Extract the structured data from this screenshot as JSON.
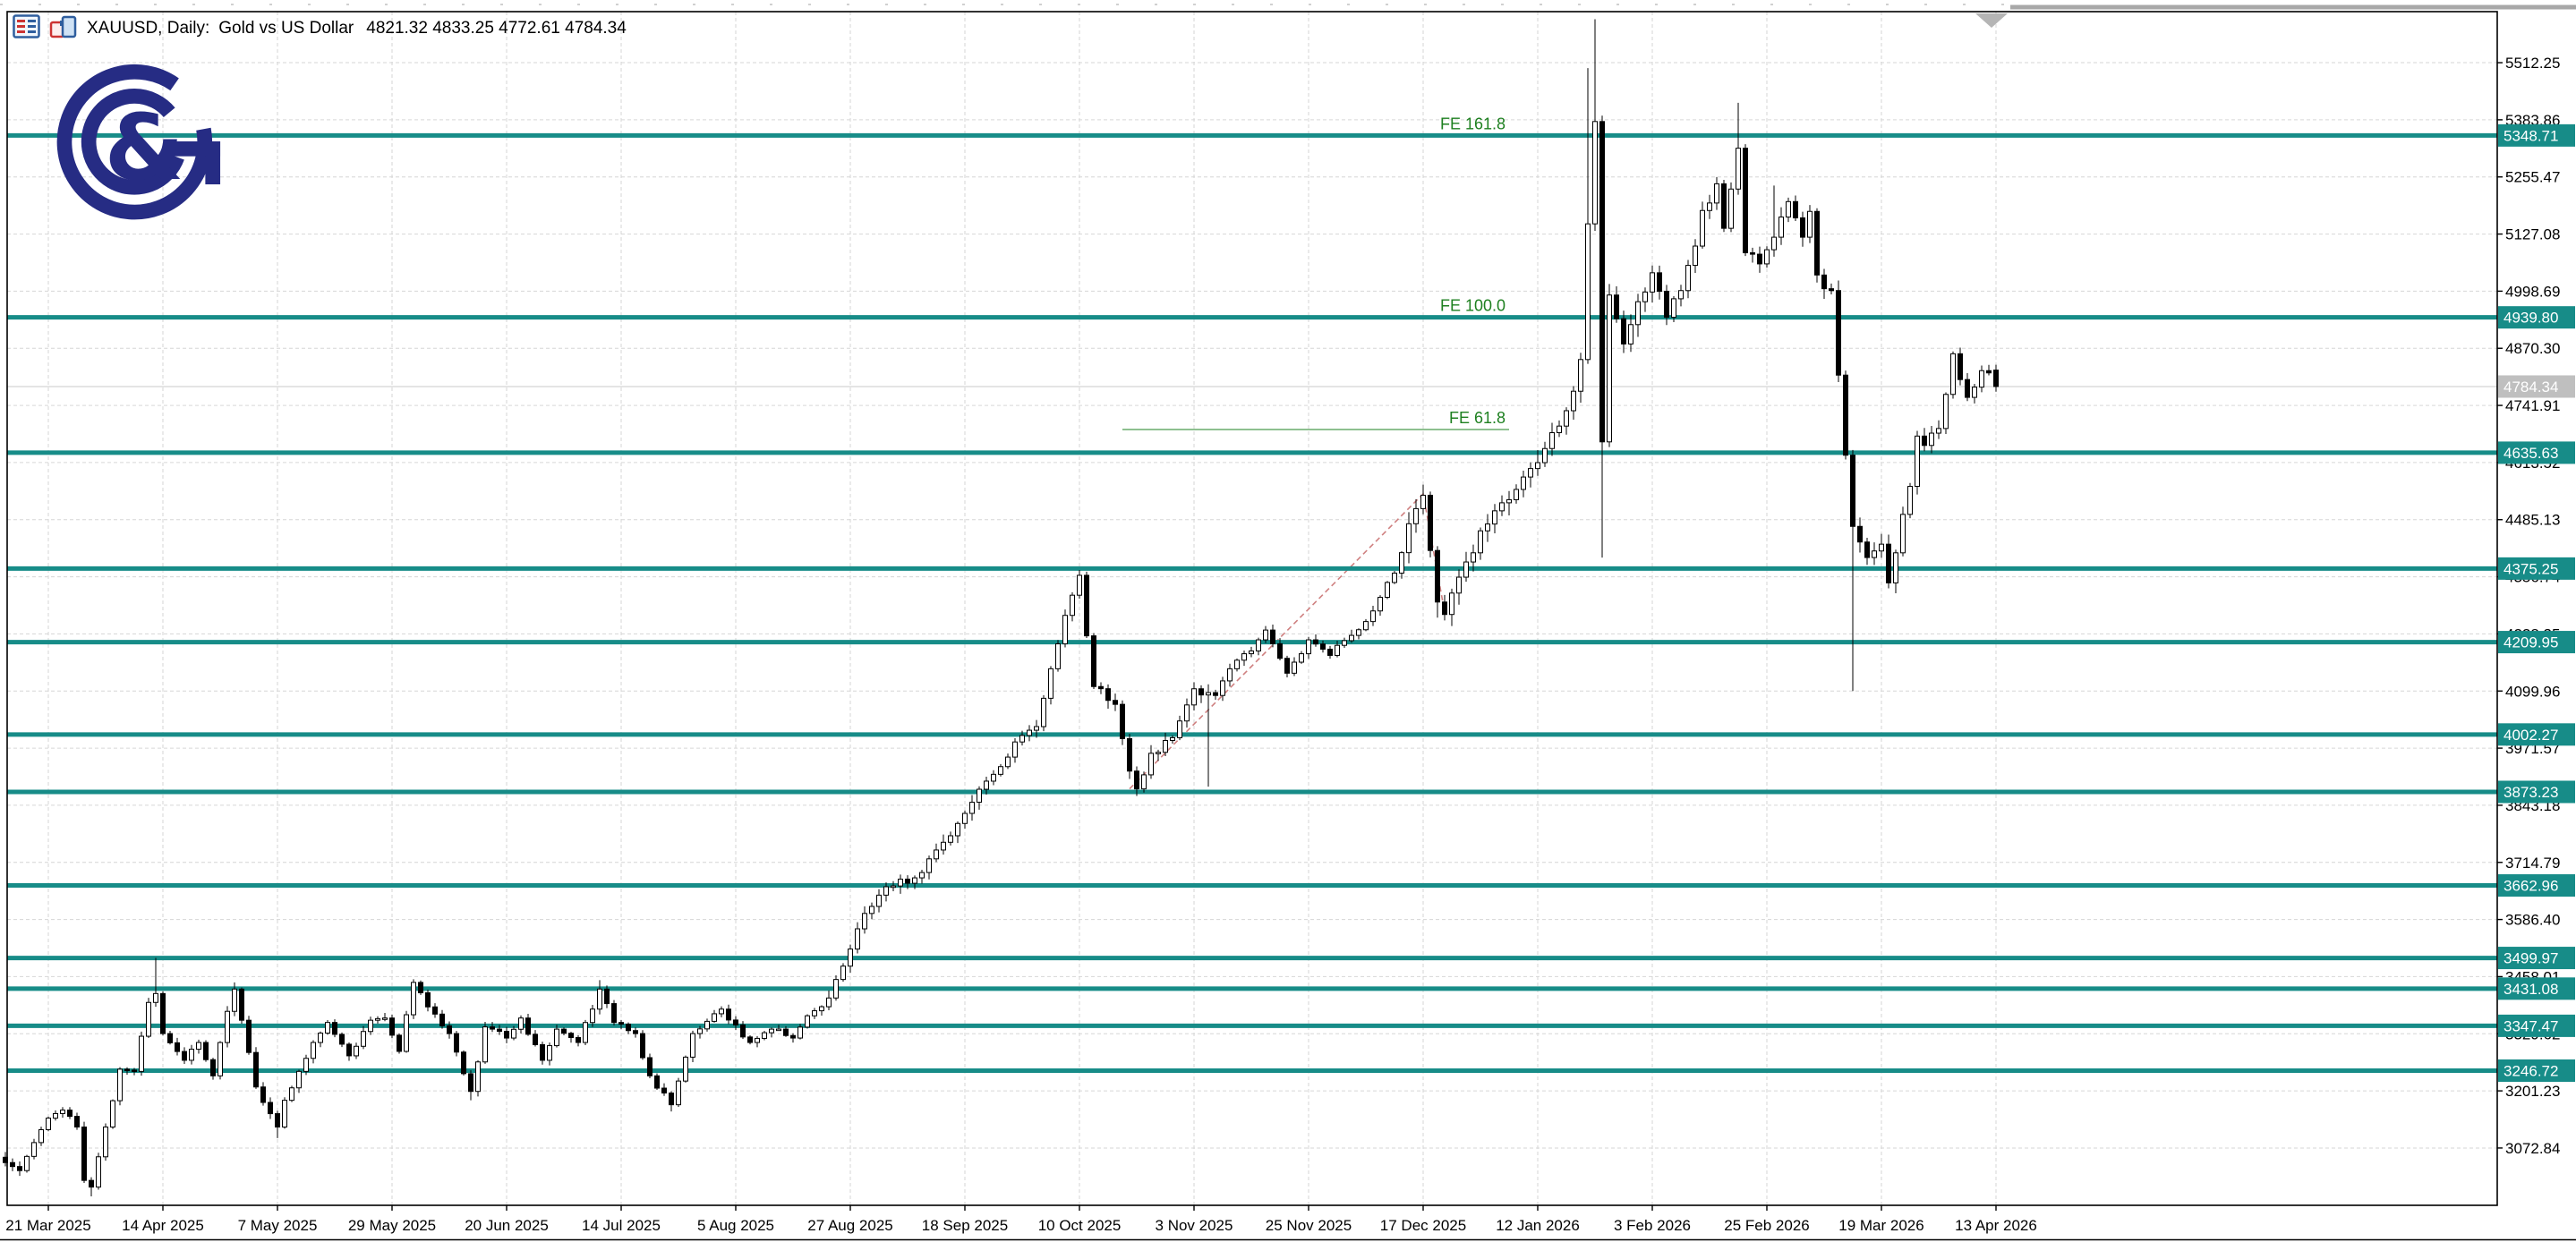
{
  "window": {
    "title_symbol": "XAUUSD, Daily:",
    "title_desc": "Gold vs US Dollar",
    "title_ohlc": "4821.32 4833.25 4772.61 4784.34",
    "icons": [
      "market-watch-icon",
      "chart-windows-icon"
    ],
    "logo": "gc-broker-logo"
  },
  "colors": {
    "level_teal": "#178c88",
    "level_label_text": "#ffffff",
    "current_price_bg": "#bfbfbf",
    "current_price_line": "#c9c9c9",
    "fib_green": "#1e8020",
    "fib_trend_red": "#cf8080",
    "grid": "#d6d6d6",
    "bull_body": "#ffffff",
    "bear_body": "#000000",
    "candle_outline": "#000000",
    "axis_text": "#000000",
    "border": "#000000",
    "scroll_thumb": "#a8a8a8",
    "shift_triangle": "#b5b5b5",
    "logo_navy": "#262c84",
    "icon_blue": "#2f5e9e",
    "icon_red": "#cc3333",
    "icon_fill": "#cfe2f5"
  },
  "chart_data": {
    "type": "candlestick",
    "symbol": "XAUUSD",
    "timeframe": "Daily",
    "title": "Gold vs US Dollar",
    "last_ohlc": {
      "open": 4821.32,
      "high": 4833.25,
      "low": 4772.61,
      "close": 4784.34
    },
    "current_price": 4784.34,
    "bars": 279,
    "ylim": [
      2944,
      5627
    ],
    "grid": true,
    "price_ticks": [
      5512.25,
      5383.86,
      5255.47,
      5127.08,
      4998.69,
      4870.3,
      4741.91,
      4613.52,
      4485.13,
      4356.74,
      4228.35,
      4099.96,
      3971.57,
      3843.18,
      3714.79,
      3586.4,
      3458.01,
      3329.62,
      3201.23,
      3072.84
    ],
    "sr_levels": [
      5348.71,
      4939.8,
      4635.63,
      4375.25,
      4209.95,
      4002.27,
      3873.23,
      3662.96,
      3499.97,
      3431.08,
      3347.47,
      3246.72
    ],
    "close_anchors": [
      [
        0,
        3040
      ],
      [
        2,
        3022
      ],
      [
        4,
        3085
      ],
      [
        6,
        3140
      ],
      [
        8,
        3158
      ],
      [
        10,
        3120
      ],
      [
        11,
        3000
      ],
      [
        12,
        2985
      ],
      [
        14,
        3120
      ],
      [
        16,
        3250
      ],
      [
        18,
        3245
      ],
      [
        20,
        3400
      ],
      [
        21,
        3420
      ],
      [
        22,
        3330
      ],
      [
        25,
        3270
      ],
      [
        27,
        3310
      ],
      [
        29,
        3235
      ],
      [
        31,
        3380
      ],
      [
        32,
        3430
      ],
      [
        33,
        3360
      ],
      [
        35,
        3210
      ],
      [
        37,
        3150
      ],
      [
        38,
        3120
      ],
      [
        39,
        3180
      ],
      [
        41,
        3245
      ],
      [
        43,
        3310
      ],
      [
        45,
        3355
      ],
      [
        48,
        3280
      ],
      [
        51,
        3360
      ],
      [
        53,
        3365
      ],
      [
        55,
        3290
      ],
      [
        57,
        3445
      ],
      [
        59,
        3390
      ],
      [
        62,
        3330
      ],
      [
        65,
        3200
      ],
      [
        67,
        3345
      ],
      [
        70,
        3320
      ],
      [
        72,
        3365
      ],
      [
        75,
        3270
      ],
      [
        77,
        3340
      ],
      [
        80,
        3310
      ],
      [
        83,
        3430
      ],
      [
        85,
        3355
      ],
      [
        88,
        3330
      ],
      [
        90,
        3235
      ],
      [
        93,
        3170
      ],
      [
        96,
        3330
      ],
      [
        100,
        3385
      ],
      [
        104,
        3310
      ],
      [
        107,
        3340
      ],
      [
        110,
        3320
      ],
      [
        112,
        3370
      ],
      [
        115,
        3410
      ],
      [
        118,
        3520
      ],
      [
        120,
        3600
      ],
      [
        123,
        3660
      ],
      [
        127,
        3680
      ],
      [
        131,
        3760
      ],
      [
        135,
        3850
      ],
      [
        139,
        3930
      ],
      [
        142,
        4000
      ],
      [
        144,
        4020
      ],
      [
        146,
        4150
      ],
      [
        148,
        4270
      ],
      [
        150,
        4360
      ],
      [
        152,
        4110
      ],
      [
        155,
        4070
      ],
      [
        157,
        3920
      ],
      [
        158,
        3880
      ],
      [
        160,
        3960
      ],
      [
        163,
        3995
      ],
      [
        166,
        4105
      ],
      [
        169,
        4090
      ],
      [
        171,
        4150
      ],
      [
        174,
        4190
      ],
      [
        176,
        4237
      ],
      [
        179,
        4140
      ],
      [
        182,
        4215
      ],
      [
        185,
        4180
      ],
      [
        188,
        4225
      ],
      [
        191,
        4280
      ],
      [
        194,
        4365
      ],
      [
        197,
        4510
      ],
      [
        198,
        4540
      ],
      [
        200,
        4300
      ],
      [
        201,
        4272
      ],
      [
        204,
        4390
      ],
      [
        206,
        4460
      ],
      [
        208,
        4505
      ],
      [
        210,
        4530
      ],
      [
        213,
        4600
      ],
      [
        215,
        4645
      ],
      [
        218,
        4730
      ],
      [
        220,
        4845
      ],
      [
        221,
        5150
      ],
      [
        222,
        5380
      ],
      [
        223,
        4660
      ],
      [
        224,
        4990
      ],
      [
        226,
        4880
      ],
      [
        228,
        4975
      ],
      [
        230,
        5040
      ],
      [
        232,
        4940
      ],
      [
        234,
        5000
      ],
      [
        236,
        5100
      ],
      [
        237,
        5180
      ],
      [
        239,
        5240
      ],
      [
        240,
        5140
      ],
      [
        242,
        5320
      ],
      [
        243,
        5085
      ],
      [
        245,
        5060
      ],
      [
        247,
        5120
      ],
      [
        249,
        5200
      ],
      [
        251,
        5120
      ],
      [
        252,
        5178
      ],
      [
        253,
        5035
      ],
      [
        255,
        5000
      ],
      [
        256,
        4810
      ],
      [
        257,
        4630
      ],
      [
        258,
        4470
      ],
      [
        260,
        4400
      ],
      [
        262,
        4430
      ],
      [
        263,
        4343
      ],
      [
        265,
        4497
      ],
      [
        266,
        4560
      ],
      [
        267,
        4673
      ],
      [
        268,
        4652
      ],
      [
        270,
        4690
      ],
      [
        272,
        4858
      ],
      [
        273,
        4800
      ],
      [
        274,
        4760
      ],
      [
        276,
        4820
      ],
      [
        277,
        4815
      ],
      [
        278,
        4784.34
      ]
    ],
    "wick_highs": [
      [
        21,
        3500
      ],
      [
        32,
        3445
      ],
      [
        57,
        3452
      ],
      [
        83,
        3450
      ],
      [
        150,
        4372
      ],
      [
        198,
        4549
      ],
      [
        221,
        5500
      ],
      [
        222,
        5610
      ],
      [
        242,
        5422
      ],
      [
        247,
        5236
      ]
    ],
    "wick_lows": [
      [
        12,
        2964
      ],
      [
        38,
        3095
      ],
      [
        65,
        3180
      ],
      [
        93,
        3155
      ],
      [
        158,
        3878
      ],
      [
        168,
        3885
      ],
      [
        200,
        4265
      ],
      [
        223,
        4400
      ],
      [
        258,
        4100
      ],
      [
        263,
        4331
      ]
    ],
    "volatility": [
      [
        0,
        114,
        1.0
      ],
      [
        115,
        150,
        1.5
      ],
      [
        151,
        170,
        1.6
      ],
      [
        171,
        195,
        1.1
      ],
      [
        196,
        230,
        2.4
      ],
      [
        231,
        255,
        1.9
      ],
      [
        256,
        270,
        2.0
      ],
      [
        271,
        278,
        1.2
      ]
    ],
    "fib_expansion": {
      "points": [
        [
          157,
          3880
        ],
        [
          198,
          4543
        ],
        [
          201,
          4277
        ]
      ],
      "levels": [
        {
          "label": "FE 61.8",
          "price": 4687.7
        },
        {
          "label": "FE 100.0",
          "price": 4939.8
        },
        {
          "label": "FE 161.8",
          "price": 5348.7
        }
      ]
    },
    "x_labels": [
      [
        6,
        "21 Mar 2025"
      ],
      [
        22,
        "14 Apr 2025"
      ],
      [
        38,
        "7 May 2025"
      ],
      [
        54,
        "29 May 2025"
      ],
      [
        70,
        "20 Jun 2025"
      ],
      [
        86,
        "14 Jul 2025"
      ],
      [
        102,
        "5 Aug 2025"
      ],
      [
        118,
        "27 Aug 2025"
      ],
      [
        134,
        "18 Sep 2025"
      ],
      [
        150,
        "10 Oct 2025"
      ],
      [
        166,
        "3 Nov 2025"
      ],
      [
        182,
        "25 Nov 2025"
      ],
      [
        198,
        "17 Dec 2025"
      ],
      [
        214,
        "12 Jan 2026"
      ],
      [
        230,
        "3 Feb 2026"
      ],
      [
        246,
        "25 Feb 2026"
      ],
      [
        262,
        "19 Mar 2026"
      ],
      [
        278,
        "13 Apr 2026"
      ]
    ]
  }
}
